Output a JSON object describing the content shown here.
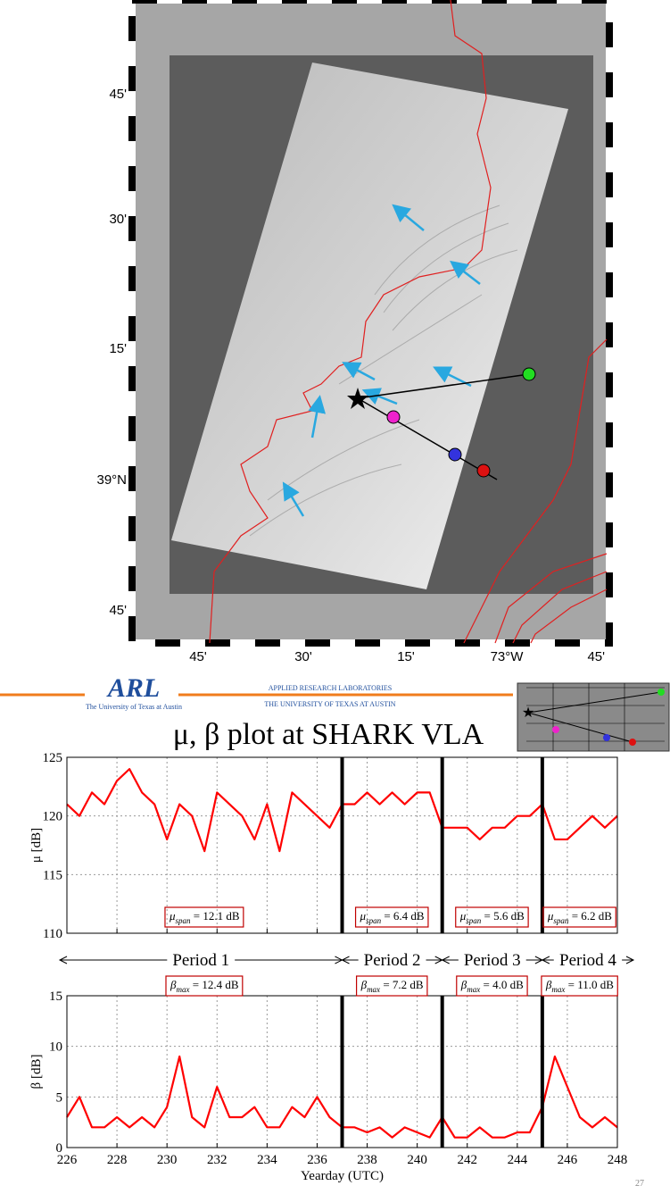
{
  "map": {
    "lat_labels": [
      "45'",
      "30'",
      "15'",
      "39°N",
      "45'"
    ],
    "lon_labels": [
      "45'",
      "30'",
      "15'",
      "73°W",
      "45'"
    ]
  },
  "header": {
    "logo": "ARL",
    "logo_sub": "The University of Texas at Austin",
    "org_line1": "APPLIED RESEARCH LABORATORIES",
    "org_line2": "THE UNIVERSITY OF TEXAS AT AUSTIN"
  },
  "title": "μ, β plot at SHARK VLA",
  "periods": {
    "names": [
      "Period 1",
      "Period 2",
      "Period 3",
      "Period 4"
    ],
    "bounds": [
      226,
      237,
      241,
      245,
      248
    ]
  },
  "chart_data": [
    {
      "type": "line",
      "ylabel": "μ [dB]",
      "color": "#ff0000",
      "grid": true,
      "xlim": [
        226,
        248
      ],
      "xticks": [
        226,
        228,
        230,
        232,
        234,
        236,
        238,
        240,
        242,
        244,
        246,
        248
      ],
      "show_xtick_labels": false,
      "ylim": [
        110,
        125
      ],
      "yticks": [
        110,
        115,
        120,
        125
      ],
      "x": [
        226,
        226.5,
        227,
        227.5,
        228,
        228.5,
        229,
        229.5,
        230,
        230.5,
        231,
        231.5,
        232,
        232.5,
        233,
        233.5,
        234,
        234.5,
        235,
        235.5,
        236,
        236.5,
        237,
        237.5,
        238,
        238.5,
        239,
        239.5,
        240,
        240.5,
        241,
        241.5,
        242,
        242.5,
        243,
        243.5,
        244,
        244.5,
        245,
        245.5,
        246,
        246.5,
        247,
        247.5,
        248
      ],
      "values": [
        121,
        120,
        122,
        121,
        123,
        124,
        122,
        121,
        118,
        121,
        120,
        117,
        122,
        121,
        120,
        118,
        121,
        117,
        122,
        121,
        120,
        119,
        121,
        121,
        122,
        121,
        122,
        121,
        122,
        122,
        119,
        119,
        119,
        118,
        119,
        119,
        120,
        120,
        121,
        118,
        118,
        119,
        120,
        119,
        120
      ],
      "annotations": [
        {
          "symbol": "μ",
          "sub": "span",
          "text": " = 12.1 dB"
        },
        {
          "symbol": "μ",
          "sub": "span",
          "text": " = 6.4 dB"
        },
        {
          "symbol": "μ",
          "sub": "span",
          "text": " = 5.6 dB"
        },
        {
          "symbol": "μ",
          "sub": "span",
          "text": " = 6.2 dB"
        }
      ]
    },
    {
      "type": "line",
      "ylabel": "β [dB]",
      "xlabel": "Yearday (UTC)",
      "color": "#ff0000",
      "grid": true,
      "xlim": [
        226,
        248
      ],
      "xticks": [
        226,
        228,
        230,
        232,
        234,
        236,
        238,
        240,
        242,
        244,
        246,
        248
      ],
      "show_xtick_labels": true,
      "ylim": [
        0,
        15
      ],
      "yticks": [
        0,
        5,
        10,
        15
      ],
      "x": [
        226,
        226.5,
        227,
        227.5,
        228,
        228.5,
        229,
        229.5,
        230,
        230.5,
        231,
        231.5,
        232,
        232.5,
        233,
        233.5,
        234,
        234.5,
        235,
        235.5,
        236,
        236.5,
        237,
        237.5,
        238,
        238.5,
        239,
        239.5,
        240,
        240.5,
        241,
        241.5,
        242,
        242.5,
        243,
        243.5,
        244,
        244.5,
        245,
        245.5,
        246,
        246.5,
        247,
        247.5,
        248
      ],
      "values": [
        3,
        5,
        2,
        2,
        3,
        2,
        3,
        2,
        4,
        9,
        3,
        2,
        6,
        3,
        3,
        4,
        2,
        2,
        4,
        3,
        5,
        3,
        2,
        2,
        1.5,
        2,
        1,
        2,
        1.5,
        1,
        3,
        1,
        1,
        2,
        1,
        1,
        1.5,
        1.5,
        4,
        9,
        6,
        3,
        2,
        3,
        2
      ],
      "annotations": [
        {
          "symbol": "β",
          "sub": "max",
          "text": " = 12.4 dB"
        },
        {
          "symbol": "β",
          "sub": "max",
          "text": " = 7.2 dB"
        },
        {
          "symbol": "β",
          "sub": "max",
          "text": " = 4.0 dB"
        },
        {
          "symbol": "β",
          "sub": "max",
          "text": " = 11.0 dB"
        }
      ]
    }
  ],
  "page_number": "27"
}
